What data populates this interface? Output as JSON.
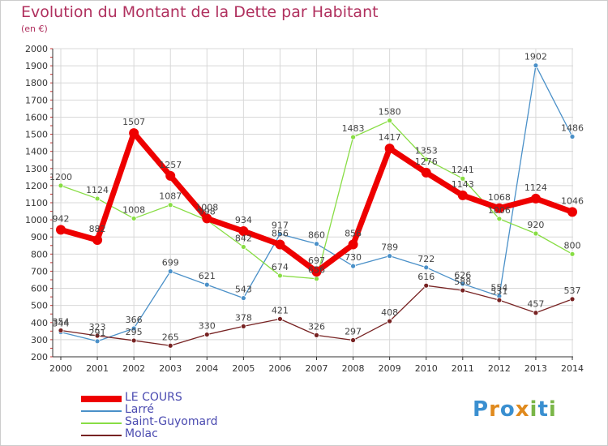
{
  "title": "Evolution du Montant de la Dette par Habitant",
  "subtitle": "(en €)",
  "brand": {
    "letters": [
      "P",
      "r",
      "o",
      "x",
      "i",
      "t",
      "i"
    ],
    "colors": [
      "#3a8fd0",
      "#e08a1e",
      "#3a8fd0",
      "#e08a1e",
      "#7ab648",
      "#3a8fd0",
      "#7ab648"
    ]
  },
  "chart_data": {
    "type": "line",
    "x": [
      2000,
      2001,
      2002,
      2003,
      2004,
      2005,
      2006,
      2007,
      2008,
      2009,
      2010,
      2011,
      2012,
      2013,
      2014
    ],
    "ylim": [
      200,
      2000
    ],
    "yticks": [
      200,
      300,
      400,
      500,
      600,
      700,
      800,
      900,
      1000,
      1100,
      1200,
      1300,
      1400,
      1500,
      1600,
      1700,
      1800,
      1900,
      2000
    ],
    "grid": true,
    "legend_position": "bottom-left",
    "series": [
      {
        "name": "LE COURS",
        "color": "#ee0000",
        "values": [
          942,
          882,
          1507,
          1257,
          1008,
          934,
          856,
          697,
          856,
          1417,
          1276,
          1143,
          1068,
          1124,
          1046
        ]
      },
      {
        "name": "Larré",
        "color": "#4a90c8",
        "values": [
          344,
          291,
          366,
          699,
          621,
          543,
          917,
          860,
          730,
          789,
          722,
          626,
          554,
          1902,
          1486
        ]
      },
      {
        "name": "Saint-Guyomard",
        "color": "#88dd44",
        "values": [
          1200,
          1124,
          1008,
          1087,
          998,
          842,
          674,
          656,
          1483,
          1580,
          1353,
          1241,
          1006,
          920,
          800
        ]
      },
      {
        "name": "Molac",
        "color": "#772222",
        "values": [
          354,
          323,
          295,
          265,
          330,
          378,
          421,
          326,
          297,
          408,
          616,
          588,
          531,
          457,
          537
        ]
      }
    ]
  }
}
